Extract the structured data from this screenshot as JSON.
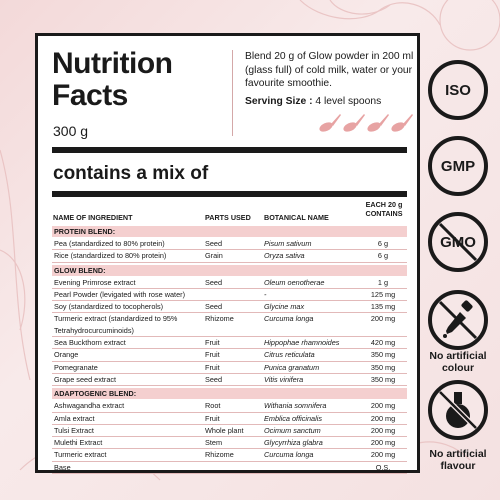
{
  "title_line1": "Nutrition",
  "title_line2": "Facts",
  "net_weight": "300 g",
  "description": "Blend 20 g of Glow powder in 200 ml (glass full) of cold milk, water or your favourite smoothie.",
  "serving_label": "Serving Size :",
  "serving_value": "4 level spoons",
  "mix_heading": "contains a mix of",
  "columns": {
    "name": "NAME OF INGREDIENT",
    "parts": "PARTS USED",
    "botanical": "BOTANICAL NAME",
    "each": "EACH 20 g CONTAINS"
  },
  "sections": {
    "protein": {
      "title": "PROTEIN BLEND:",
      "rows": [
        {
          "name": "Pea (standardized to 80% protein)",
          "part": "Seed",
          "botanical": "Pisum sativum",
          "amount": "6 g"
        },
        {
          "name": "Rice (standardized to 80% protein)",
          "part": "Grain",
          "botanical": "Oryza sativa",
          "amount": "6 g"
        }
      ]
    },
    "glow": {
      "title": "GLOW BLEND:",
      "rows": [
        {
          "name": "Evening Primrose extract",
          "part": "Seed",
          "botanical": "Oleum oenotherae",
          "amount": "1 g"
        },
        {
          "name": "Pearl Powder (levigated with rose water)",
          "part": "",
          "botanical": "-",
          "amount": "125 mg"
        },
        {
          "name": "Soy (standardized to tocopherols)",
          "part": "Seed",
          "botanical": "Glycine max",
          "amount": "135 mg"
        },
        {
          "name": "Turmeric extract (standardized to 95% Tetrahydrocurcuminoids)",
          "part": "Rhizome",
          "botanical": "Curcuma longa",
          "amount": "200 mg"
        },
        {
          "name": "Sea Buckthorn extract",
          "part": "Fruit",
          "botanical": "Hippophae rhamnoides",
          "amount": "420 mg"
        },
        {
          "name": "Orange",
          "part": "Fruit",
          "botanical": "Citrus reticulata",
          "amount": "350 mg"
        },
        {
          "name": "Pomegranate",
          "part": "Fruit",
          "botanical": "Punica granatum",
          "amount": "350 mg"
        },
        {
          "name": "Grape seed extract",
          "part": "Seed",
          "botanical": "Vitis vinifera",
          "amount": "350 mg"
        }
      ]
    },
    "adaptogenic": {
      "title": "ADAPTOGENIC BLEND:",
      "rows": [
        {
          "name": "Ashwagandha extract",
          "part": "Root",
          "botanical": "Withania somnifera",
          "amount": "200 mg"
        },
        {
          "name": "Amla extract",
          "part": "Fruit",
          "botanical": "Emblica officinalis",
          "amount": "200 mg"
        },
        {
          "name": "Tulsi Extract",
          "part": "Whole plant",
          "botanical": "Ocimum sanctum",
          "amount": "200 mg"
        },
        {
          "name": "Mulethi Extract",
          "part": "Stem",
          "botanical": "Glycyrrhiza glabra",
          "amount": "200 mg"
        },
        {
          "name": "Turmeric extract",
          "part": "Rhizome",
          "botanical": "Curcuma longa",
          "amount": "200 mg"
        },
        {
          "name": "Base",
          "part": "",
          "botanical": "",
          "amount": "Q.S."
        }
      ]
    }
  },
  "badges": {
    "iso": "ISO",
    "gmp": "GMP",
    "gmo": "GMO",
    "no_colour": "No artificial colour",
    "no_flavour": "No artificial flavour"
  },
  "colors": {
    "accent_pink": "#f4cfcf",
    "spoon_pink": "#e7a3a3",
    "ink": "#1a1a1a"
  }
}
